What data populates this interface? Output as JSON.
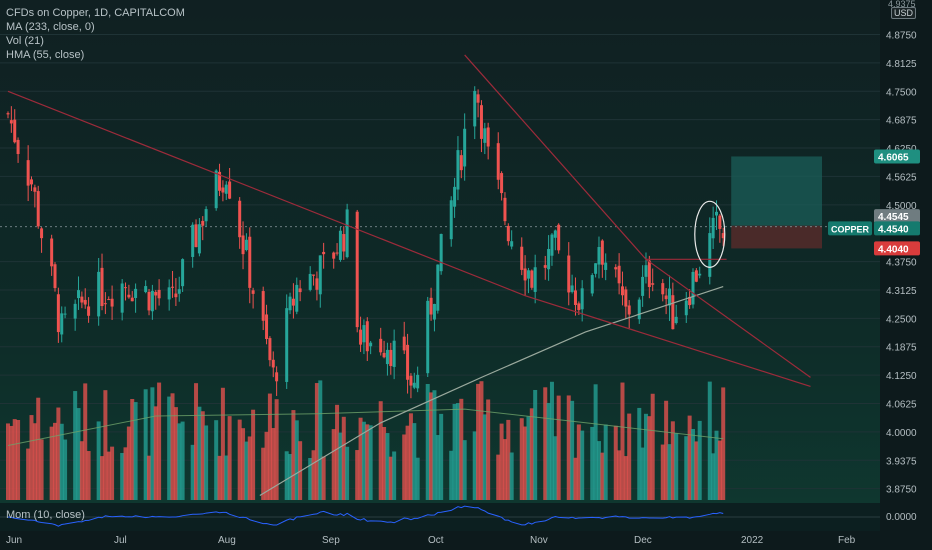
{
  "header": {
    "symbol_line": "CFDs on Copper, 1D, CAPITALCOM",
    "ma_line": "MA (233, close, 0)",
    "vol_line": "Vol (21)",
    "hma_line": "HMA (55, close)",
    "currency": "USD"
  },
  "momentum": {
    "label": "Mom (10, close)",
    "axis_label": "0.0000"
  },
  "price_axis": {
    "top_label": "4.9375",
    "ticks": [
      "4.8750",
      "4.8125",
      "4.7500",
      "4.6875",
      "4.6250",
      "4.5625",
      "4.5000",
      "4.3750",
      "4.3125",
      "4.2500",
      "4.1875",
      "4.1250",
      "4.0625",
      "4.0000",
      "3.9375",
      "3.8750"
    ]
  },
  "badges": {
    "target": "4.6065",
    "current_name": "COPPER",
    "current_price": "4.4540",
    "upper_price": "4.4545",
    "stop": "4.4040"
  },
  "time_axis": [
    "Jun",
    "Jul",
    "Aug",
    "Sep",
    "Oct",
    "Nov",
    "Dec",
    "2022",
    "Feb"
  ],
  "colors": {
    "up": "#26a69a",
    "down": "#ef5350",
    "trendline": "#9c2b3a",
    "ma": "#9aa99d",
    "momentum": "#2962ff",
    "target_zone": "#1b5e58",
    "stop_zone": "#5a2b2b"
  },
  "chart_data": {
    "type": "candlestick",
    "x_start": "2021-06-01",
    "x_end": "2022-01-05",
    "ylim": [
      3.85,
      4.94
    ],
    "anchors": [
      [
        "2021-06-01",
        4.7
      ],
      [
        "2021-06-08",
        4.55
      ],
      [
        "2021-06-17",
        4.22
      ],
      [
        "2021-06-25",
        4.3
      ],
      [
        "2021-07-06",
        4.33
      ],
      [
        "2021-07-20",
        4.28
      ],
      [
        "2021-07-30",
        4.5
      ],
      [
        "2021-08-05",
        4.58
      ],
      [
        "2021-08-19",
        4.12
      ],
      [
        "2021-08-26",
        4.32
      ],
      [
        "2021-09-03",
        4.36
      ],
      [
        "2021-09-10",
        4.45
      ],
      [
        "2021-09-14",
        4.2
      ],
      [
        "2021-09-22",
        4.2
      ],
      [
        "2021-09-30",
        4.1
      ],
      [
        "2021-10-11",
        4.5
      ],
      [
        "2021-10-18",
        4.78
      ],
      [
        "2021-10-22",
        4.6
      ],
      [
        "2021-10-28",
        4.45
      ],
      [
        "2021-11-04",
        4.34
      ],
      [
        "2021-11-11",
        4.4
      ],
      [
        "2021-11-19",
        4.28
      ],
      [
        "2021-11-24",
        4.42
      ],
      [
        "2021-12-02",
        4.26
      ],
      [
        "2021-12-10",
        4.36
      ],
      [
        "2021-12-16",
        4.26
      ],
      [
        "2021-12-21",
        4.32
      ],
      [
        "2021-12-29",
        4.45
      ],
      [
        "2021-12-31",
        4.44
      ]
    ],
    "ma233": [
      [
        "2021-08-15",
        3.86
      ],
      [
        "2021-09-20",
        4.02
      ],
      [
        "2021-10-20",
        4.12
      ],
      [
        "2021-11-20",
        4.22
      ],
      [
        "2021-12-31",
        4.32
      ]
    ],
    "trendlines": [
      [
        [
          "2021-06-01",
          4.75
        ],
        [
          "2021-11-02",
          4.3
        ],
        [
          "2022-01-26",
          4.1
        ]
      ],
      [
        [
          "2021-10-15",
          4.83
        ],
        [
          "2021-12-08",
          4.38
        ],
        [
          "2022-01-26",
          4.12
        ]
      ],
      [
        [
          "2021-12-08",
          4.38
        ],
        [
          "2022-01-01",
          4.38
        ]
      ]
    ],
    "position": {
      "entry": 4.454,
      "target": 4.6065,
      "stop": 4.404,
      "start": "2021-12-31",
      "end": "2022-01-24"
    },
    "volume_ma": [
      [
        "2021-06-01",
        3.97
      ],
      [
        "2021-07-15",
        4.035
      ],
      [
        "2021-09-01",
        4.04
      ],
      [
        "2021-10-15",
        4.05
      ],
      [
        "2021-11-20",
        4.02
      ],
      [
        "2021-12-31",
        3.985
      ]
    ]
  }
}
